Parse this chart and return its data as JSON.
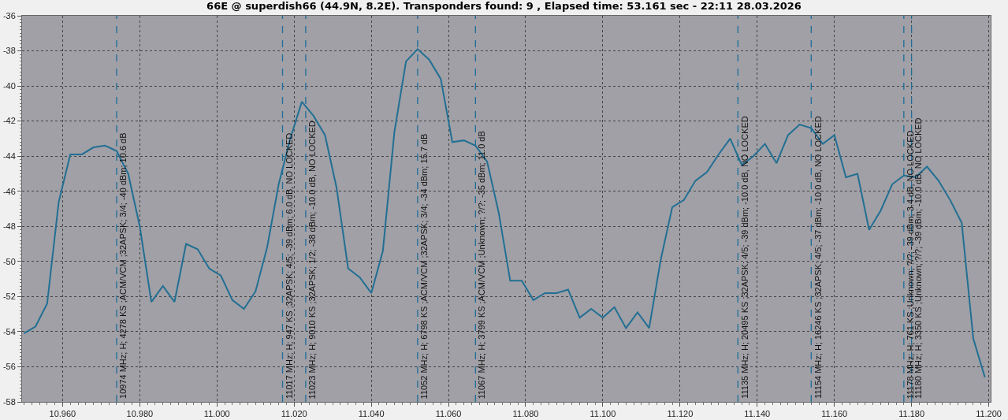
{
  "chart_data": {
    "type": "line",
    "title": "66E @ superdish66 (44.9N, 8.2E). Transponders found: 9 , Elapsed time: 53.161 sec - 22:11 28.03.2026",
    "x": [
      10.95,
      10.953,
      10.956,
      10.959,
      10.962,
      10.965,
      10.968,
      10.971,
      10.974,
      10.977,
      10.98,
      10.983,
      10.986,
      10.989,
      10.992,
      10.995,
      10.998,
      11.001,
      11.004,
      11.007,
      11.01,
      11.013,
      11.016,
      11.019,
      11.022,
      11.025,
      11.028,
      11.031,
      11.034,
      11.037,
      11.04,
      11.043,
      11.046,
      11.049,
      11.052,
      11.055,
      11.058,
      11.061,
      11.064,
      11.067,
      11.07,
      11.073,
      11.076,
      11.079,
      11.082,
      11.085,
      11.088,
      11.091,
      11.094,
      11.097,
      11.1,
      11.103,
      11.106,
      11.109,
      11.112,
      11.115,
      11.118,
      11.121,
      11.124,
      11.127,
      11.13,
      11.133,
      11.136,
      11.139,
      11.142,
      11.145,
      11.148,
      11.151,
      11.154,
      11.157,
      11.16,
      11.163,
      11.166,
      11.169,
      11.172,
      11.175,
      11.178,
      11.181,
      11.184,
      11.187,
      11.19,
      11.193,
      11.196,
      11.199
    ],
    "series": [
      {
        "color": "#226f93",
        "values": [
          -54.1,
          -53.7,
          -52.4,
          -46.6,
          -43.9,
          -43.9,
          -43.5,
          -43.4,
          -43.7,
          -45.0,
          -48.0,
          -52.3,
          -51.4,
          -52.3,
          -49.0,
          -49.3,
          -50.4,
          -50.8,
          -52.2,
          -52.7,
          -51.7,
          -49.2,
          -45.6,
          -43.0,
          -40.9,
          -41.7,
          -42.8,
          -45.8,
          -50.4,
          -50.9,
          -51.8,
          -49.4,
          -42.6,
          -38.6,
          -37.9,
          -38.5,
          -39.6,
          -43.2,
          -43.1,
          -43.4,
          -44.3,
          -47.2,
          -51.1,
          -51.1,
          -52.2,
          -51.8,
          -51.8,
          -51.6,
          -53.2,
          -52.7,
          -53.2,
          -52.6,
          -53.8,
          -52.9,
          -53.8,
          -49.9,
          -46.9,
          -46.5,
          -45.4,
          -44.9,
          -43.9,
          -43.0,
          -44.5,
          -44.0,
          -43.3,
          -44.4,
          -42.8,
          -42.2,
          -42.4,
          -43.3,
          -42.8,
          -45.2,
          -45.0,
          -48.2,
          -47.1,
          -45.6,
          -45.1,
          -45.2,
          -44.6,
          -45.4,
          -46.5,
          -47.8,
          -54.4,
          -56.6
        ]
      }
    ],
    "xlim": [
      10.9495,
      11.2005
    ],
    "xticks": [
      {
        "value": 10.96,
        "label": "10.960"
      },
      {
        "value": 10.98,
        "label": "10.980"
      },
      {
        "value": 11.0,
        "label": "11.000"
      },
      {
        "value": 11.02,
        "label": "11.020"
      },
      {
        "value": 11.04,
        "label": "11.040"
      },
      {
        "value": 11.06,
        "label": "11.060"
      },
      {
        "value": 11.08,
        "label": "11.080"
      },
      {
        "value": 11.1,
        "label": "11.100"
      },
      {
        "value": 11.12,
        "label": "11.120"
      },
      {
        "value": 11.14,
        "label": "11.140"
      },
      {
        "value": 11.16,
        "label": "11.160"
      },
      {
        "value": 11.18,
        "label": "11.180"
      },
      {
        "value": 11.2,
        "label": "11.200"
      }
    ],
    "ylim": [
      -58,
      -36
    ],
    "yticks": [
      -58,
      -56,
      -54,
      -52,
      -50,
      -48,
      -46,
      -44,
      -42,
      -40,
      -38,
      -36
    ],
    "grid": true,
    "marker": "none",
    "line_style": "solid",
    "ref_lines": [
      {
        "axis": "x",
        "value": 10.974,
        "label": "10974 MHz; H; 4278 KS ;ACM/VCM ;32APSK; 3/4; -40 dBm; 10.6 dB",
        "color": "#1f6e99",
        "line_style": "dashed"
      },
      {
        "axis": "x",
        "value": 11.017,
        "label": "11017 MHz; H; 947 KS ;32APSK; 4/5; -39 dBm; 6.0 dB, NO LOCKED",
        "color": "#1f6e99",
        "line_style": "dashed"
      },
      {
        "axis": "x",
        "value": 11.023,
        "label": "11023 MHz; H; 9010 KS ;32APSK; 1/2; -38 dBm; -10.0 dB, NO LOCKED",
        "color": "#1f6e99",
        "line_style": "dashed"
      },
      {
        "axis": "x",
        "value": 11.052,
        "label": "11052 MHz; H; 6798 KS ;ACM/VCM ;32APSK; 3/4; -34 dBm; 15.7 dB",
        "color": "#1f6e99",
        "line_style": "dashed"
      },
      {
        "axis": "x",
        "value": 11.067,
        "label": "11067 MHz; H; 3799 KS ;ACM/VCM ;Unknown; ?/?; -35 dBm; 11.0 dB",
        "color": "#1f6e99",
        "line_style": "dashed"
      },
      {
        "axis": "x",
        "value": 11.135,
        "label": "11135 MHz; H; 20495 KS ;32APSK; 4/5; -39 dBm; -10.0 dB, NO LOCKED",
        "color": "#1f6e99",
        "line_style": "dashed"
      },
      {
        "axis": "x",
        "value": 11.154,
        "label": "11154 MHz; H; 16246 KS ;32APSK; 4/5; -37 dBm; -10.0 dB, NO LOCKED",
        "color": "#1f6e99",
        "line_style": "dashed"
      },
      {
        "axis": "x",
        "value": 11.178,
        "label": "11178 MHz; H; 761 KS ;Unknown; ?/?; -39 dBm; 3.4 dB, NO LOCKED",
        "color": "#1f6e99",
        "line_style": "dashed"
      },
      {
        "axis": "x",
        "value": 11.18,
        "label": "11180 MHz; H; 3350 KS ;Unknown; ?/?; -39 dBm; -10.0 dB, NO LOCKED",
        "color": "#1f6e99",
        "line_style": "dashed"
      }
    ]
  }
}
